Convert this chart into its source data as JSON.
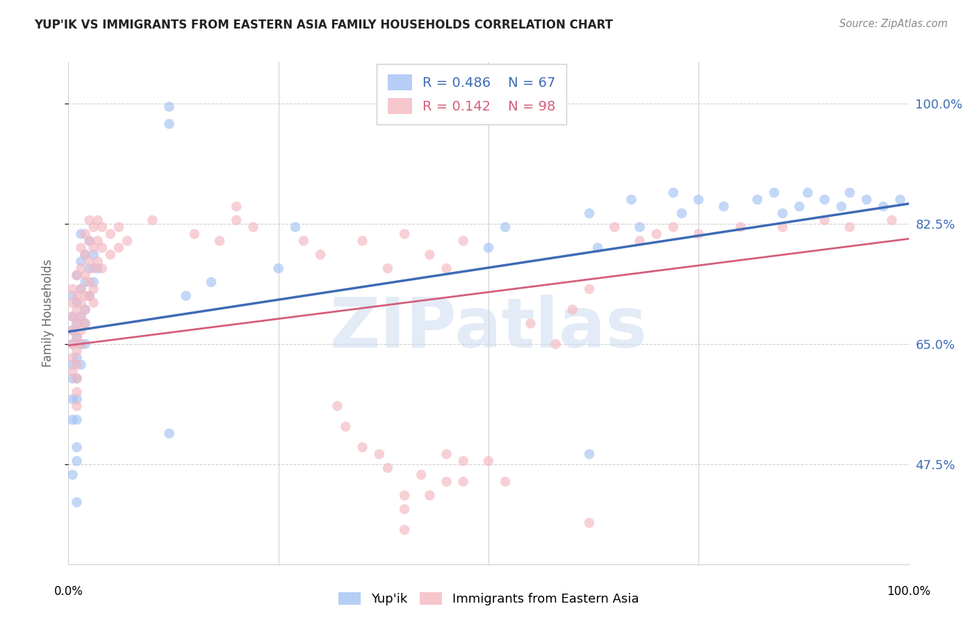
{
  "title": "YUP'IK VS IMMIGRANTS FROM EASTERN ASIA FAMILY HOUSEHOLDS CORRELATION CHART",
  "source": "Source: ZipAtlas.com",
  "ylabel": "Family Households",
  "ytick_labels": [
    "47.5%",
    "65.0%",
    "82.5%",
    "100.0%"
  ],
  "ytick_values": [
    0.475,
    0.65,
    0.825,
    1.0
  ],
  "xmin": 0.0,
  "xmax": 1.0,
  "ymin": 0.33,
  "ymax": 1.06,
  "legend_blue_r": "R = 0.486",
  "legend_blue_n": "N = 67",
  "legend_pink_r": "R = 0.142",
  "legend_pink_n": "N = 98",
  "blue_color": "#a4c2f4",
  "pink_color": "#f4b8c1",
  "blue_line_color": "#3d6bb5",
  "pink_line_color": "#d45e7a",
  "watermark_color": "#c8d8f0",
  "blue_points": [
    [
      0.005,
      0.72
    ],
    [
      0.005,
      0.69
    ],
    [
      0.005,
      0.67
    ],
    [
      0.005,
      0.65
    ],
    [
      0.005,
      0.62
    ],
    [
      0.005,
      0.6
    ],
    [
      0.005,
      0.57
    ],
    [
      0.005,
      0.54
    ],
    [
      0.01,
      0.75
    ],
    [
      0.01,
      0.71
    ],
    [
      0.01,
      0.68
    ],
    [
      0.01,
      0.66
    ],
    [
      0.01,
      0.63
    ],
    [
      0.01,
      0.6
    ],
    [
      0.01,
      0.57
    ],
    [
      0.01,
      0.54
    ],
    [
      0.01,
      0.5
    ],
    [
      0.01,
      0.48
    ],
    [
      0.015,
      0.81
    ],
    [
      0.015,
      0.77
    ],
    [
      0.015,
      0.73
    ],
    [
      0.015,
      0.69
    ],
    [
      0.015,
      0.65
    ],
    [
      0.015,
      0.62
    ],
    [
      0.02,
      0.78
    ],
    [
      0.02,
      0.74
    ],
    [
      0.02,
      0.7
    ],
    [
      0.02,
      0.68
    ],
    [
      0.02,
      0.65
    ],
    [
      0.025,
      0.8
    ],
    [
      0.025,
      0.76
    ],
    [
      0.025,
      0.72
    ],
    [
      0.03,
      0.78
    ],
    [
      0.03,
      0.74
    ],
    [
      0.035,
      0.76
    ],
    [
      0.005,
      0.46
    ],
    [
      0.01,
      0.42
    ],
    [
      0.12,
      0.97
    ],
    [
      0.12,
      0.995
    ],
    [
      0.12,
      0.52
    ],
    [
      0.14,
      0.72
    ],
    [
      0.17,
      0.74
    ],
    [
      0.25,
      0.76
    ],
    [
      0.27,
      0.82
    ],
    [
      0.5,
      0.79
    ],
    [
      0.52,
      0.82
    ],
    [
      0.62,
      0.84
    ],
    [
      0.63,
      0.79
    ],
    [
      0.67,
      0.86
    ],
    [
      0.68,
      0.82
    ],
    [
      0.72,
      0.87
    ],
    [
      0.73,
      0.84
    ],
    [
      0.75,
      0.86
    ],
    [
      0.78,
      0.85
    ],
    [
      0.82,
      0.86
    ],
    [
      0.84,
      0.87
    ],
    [
      0.85,
      0.84
    ],
    [
      0.87,
      0.85
    ],
    [
      0.88,
      0.87
    ],
    [
      0.9,
      0.86
    ],
    [
      0.92,
      0.85
    ],
    [
      0.93,
      0.87
    ],
    [
      0.95,
      0.86
    ],
    [
      0.97,
      0.85
    ],
    [
      0.99,
      0.86
    ],
    [
      0.62,
      0.49
    ]
  ],
  "pink_points": [
    [
      0.005,
      0.73
    ],
    [
      0.005,
      0.71
    ],
    [
      0.005,
      0.69
    ],
    [
      0.005,
      0.67
    ],
    [
      0.005,
      0.65
    ],
    [
      0.005,
      0.63
    ],
    [
      0.005,
      0.61
    ],
    [
      0.01,
      0.75
    ],
    [
      0.01,
      0.72
    ],
    [
      0.01,
      0.7
    ],
    [
      0.01,
      0.68
    ],
    [
      0.01,
      0.66
    ],
    [
      0.01,
      0.64
    ],
    [
      0.01,
      0.62
    ],
    [
      0.01,
      0.6
    ],
    [
      0.01,
      0.58
    ],
    [
      0.01,
      0.56
    ],
    [
      0.015,
      0.79
    ],
    [
      0.015,
      0.76
    ],
    [
      0.015,
      0.73
    ],
    [
      0.015,
      0.71
    ],
    [
      0.015,
      0.69
    ],
    [
      0.015,
      0.67
    ],
    [
      0.015,
      0.65
    ],
    [
      0.02,
      0.81
    ],
    [
      0.02,
      0.78
    ],
    [
      0.02,
      0.75
    ],
    [
      0.02,
      0.72
    ],
    [
      0.02,
      0.7
    ],
    [
      0.02,
      0.68
    ],
    [
      0.025,
      0.83
    ],
    [
      0.025,
      0.8
    ],
    [
      0.025,
      0.77
    ],
    [
      0.025,
      0.74
    ],
    [
      0.025,
      0.72
    ],
    [
      0.03,
      0.82
    ],
    [
      0.03,
      0.79
    ],
    [
      0.03,
      0.76
    ],
    [
      0.03,
      0.73
    ],
    [
      0.03,
      0.71
    ],
    [
      0.035,
      0.83
    ],
    [
      0.035,
      0.8
    ],
    [
      0.035,
      0.77
    ],
    [
      0.04,
      0.82
    ],
    [
      0.04,
      0.79
    ],
    [
      0.04,
      0.76
    ],
    [
      0.05,
      0.81
    ],
    [
      0.05,
      0.78
    ],
    [
      0.06,
      0.82
    ],
    [
      0.06,
      0.79
    ],
    [
      0.07,
      0.8
    ],
    [
      0.1,
      0.83
    ],
    [
      0.15,
      0.81
    ],
    [
      0.18,
      0.8
    ],
    [
      0.22,
      0.82
    ],
    [
      0.28,
      0.8
    ],
    [
      0.3,
      0.78
    ],
    [
      0.35,
      0.8
    ],
    [
      0.38,
      0.76
    ],
    [
      0.4,
      0.81
    ],
    [
      0.43,
      0.78
    ],
    [
      0.45,
      0.76
    ],
    [
      0.47,
      0.8
    ],
    [
      0.32,
      0.56
    ],
    [
      0.33,
      0.53
    ],
    [
      0.35,
      0.5
    ],
    [
      0.37,
      0.49
    ],
    [
      0.38,
      0.47
    ],
    [
      0.4,
      0.43
    ],
    [
      0.4,
      0.41
    ],
    [
      0.4,
      0.38
    ],
    [
      0.42,
      0.46
    ],
    [
      0.43,
      0.43
    ],
    [
      0.45,
      0.49
    ],
    [
      0.45,
      0.45
    ],
    [
      0.47,
      0.48
    ],
    [
      0.47,
      0.45
    ],
    [
      0.5,
      0.48
    ],
    [
      0.52,
      0.45
    ],
    [
      0.55,
      0.68
    ],
    [
      0.58,
      0.65
    ],
    [
      0.6,
      0.7
    ],
    [
      0.62,
      0.73
    ],
    [
      0.65,
      0.82
    ],
    [
      0.68,
      0.8
    ],
    [
      0.7,
      0.81
    ],
    [
      0.72,
      0.82
    ],
    [
      0.75,
      0.81
    ],
    [
      0.8,
      0.82
    ],
    [
      0.85,
      0.82
    ],
    [
      0.9,
      0.83
    ],
    [
      0.93,
      0.82
    ],
    [
      0.98,
      0.83
    ],
    [
      0.62,
      0.39
    ],
    [
      0.2,
      0.85
    ],
    [
      0.2,
      0.83
    ]
  ],
  "blue_line": [
    [
      0.0,
      0.668
    ],
    [
      1.0,
      0.854
    ]
  ],
  "pink_line": [
    [
      0.0,
      0.648
    ],
    [
      1.0,
      0.803
    ]
  ]
}
